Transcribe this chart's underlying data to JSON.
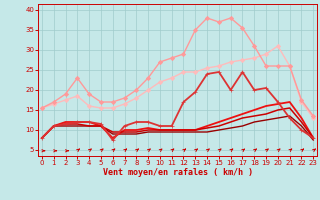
{
  "xlabel": "Vent moyen/en rafales ( km/h )",
  "x": [
    0,
    1,
    2,
    3,
    4,
    5,
    6,
    7,
    8,
    9,
    10,
    11,
    12,
    13,
    14,
    15,
    16,
    17,
    18,
    19,
    20,
    21,
    22,
    23
  ],
  "lines": [
    {
      "y": [
        15.5,
        16.5,
        17.5,
        18.5,
        16,
        15.5,
        15.5,
        16.5,
        18,
        20,
        22,
        23,
        24.5,
        24.5,
        25.5,
        26,
        27,
        27.5,
        28,
        29,
        31,
        26,
        17,
        13
      ],
      "color": "#ffbbbb",
      "lw": 1.0,
      "marker": "D",
      "ms": 2.2,
      "zorder": 2
    },
    {
      "y": [
        15.5,
        17,
        19,
        23,
        19,
        17,
        17,
        18,
        20,
        23,
        27,
        28,
        29,
        35,
        38,
        37,
        38,
        35.5,
        31,
        26,
        26,
        26,
        17.5,
        13.5
      ],
      "color": "#ff9999",
      "lw": 1.0,
      "marker": "D",
      "ms": 2.2,
      "zorder": 3
    },
    {
      "y": [
        8,
        11,
        11.5,
        12,
        12,
        11.5,
        7.5,
        11,
        12,
        12,
        11,
        11,
        17,
        19.5,
        24,
        24.5,
        20,
        24.5,
        20,
        20.5,
        17,
        13,
        10,
        8
      ],
      "color": "#dd3333",
      "lw": 1.3,
      "marker": "+",
      "ms": 3.5,
      "zorder": 4
    },
    {
      "y": [
        8,
        11,
        12,
        12,
        12,
        11,
        8,
        10,
        10,
        10.5,
        10,
        10,
        10,
        10,
        11,
        12,
        13,
        14,
        15,
        16,
        16.5,
        17,
        13,
        8
      ],
      "color": "#ee1111",
      "lw": 1.3,
      "marker": null,
      "zorder": 3
    },
    {
      "y": [
        8,
        11,
        11.5,
        11.5,
        11,
        11,
        9.5,
        9.5,
        9.5,
        10,
        10,
        10,
        10,
        10,
        10.5,
        11,
        12,
        13,
        13.5,
        14,
        15,
        15.5,
        12,
        8
      ],
      "color": "#cc0000",
      "lw": 1.1,
      "marker": null,
      "zorder": 3
    },
    {
      "y": [
        8,
        11,
        11,
        11,
        11,
        11,
        9,
        9,
        9,
        9.5,
        9.5,
        9.5,
        9.5,
        9.5,
        9.5,
        10,
        10.5,
        11,
        12,
        12.5,
        13,
        13.5,
        11,
        7.5
      ],
      "color": "#990000",
      "lw": 1.0,
      "marker": null,
      "zorder": 2
    }
  ],
  "ylim": [
    3.5,
    41.5
  ],
  "xlim": [
    -0.3,
    23.3
  ],
  "yticks": [
    5,
    10,
    15,
    20,
    25,
    30,
    35,
    40
  ],
  "xticks": [
    0,
    1,
    2,
    3,
    4,
    5,
    6,
    7,
    8,
    9,
    10,
    11,
    12,
    13,
    14,
    15,
    16,
    17,
    18,
    19,
    20,
    21,
    22,
    23
  ],
  "bg_color": "#c5e8e8",
  "grid_color": "#a0cccc",
  "tick_color": "#cc0000",
  "label_color": "#cc0000"
}
